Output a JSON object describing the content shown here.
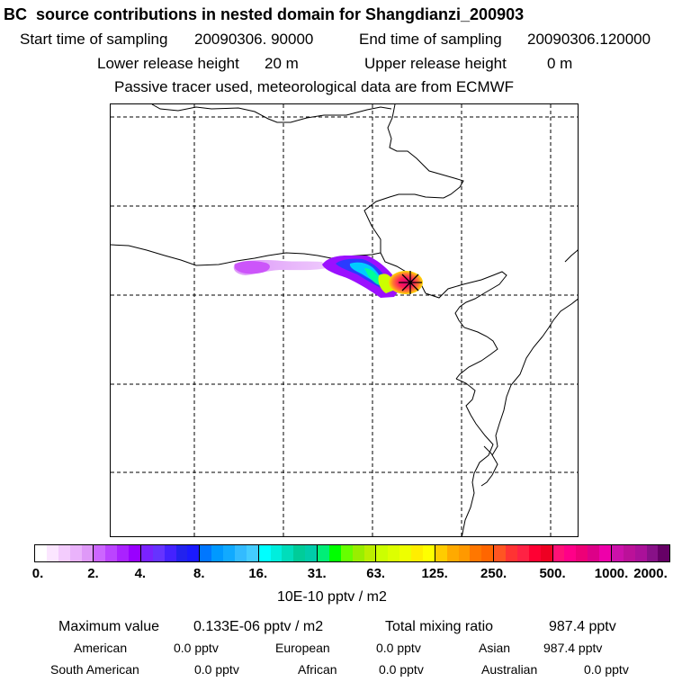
{
  "header": {
    "title": "BC  source contributions in nested domain for Shangdianzi_200903",
    "start_label": "Start time of sampling",
    "start_value": "20090306. 90000",
    "end_label": "End time of sampling",
    "end_value": "20090306.120000",
    "lower_label": "Lower release height",
    "lower_value": "20 m",
    "upper_label": "Upper release height",
    "upper_value": "0 m",
    "note": "Passive tracer used, meteorological data are from ECMWF"
  },
  "map": {
    "receptor_marker": "star-receptor-icon",
    "plume_peak_value_fraction": 1.0
  },
  "colorbar": {
    "ticks": [
      "0.",
      "2.",
      "4.",
      "8.",
      "16.",
      "31.",
      "63.",
      "125.",
      "250.",
      "500.",
      "1000.",
      "2000."
    ],
    "colors": [
      [
        "#ffffff",
        "#fbe6ff",
        "#f3ccfd",
        "#eab3fb",
        "#df99f8"
      ],
      [
        "#cc66ff",
        "#bb44ff",
        "#aa22ff",
        "#9900ff"
      ],
      [
        "#7a22ff",
        "#6633ff",
        "#4422ff",
        "#2222ee",
        "#1a1aff"
      ],
      [
        "#0077ff",
        "#0099ff",
        "#11aaff",
        "#33bbff",
        "#44ccff"
      ],
      [
        "#00ffff",
        "#00eedd",
        "#00ddbb",
        "#00cc99",
        "#00ccaa"
      ],
      [
        "#00ee77",
        "#00ff00",
        "#66ff00",
        "#99ee00",
        "#bbee00"
      ],
      [
        "#ccff00",
        "#ddff00",
        "#eeff00",
        "#ffee00",
        "#ffff00"
      ],
      [
        "#ffcc00",
        "#ffaa00",
        "#ff9900",
        "#ff7700",
        "#ff6600"
      ],
      [
        "#ff5522",
        "#ff3333",
        "#ff2244",
        "#ff0033",
        "#ee0022"
      ],
      [
        "#ff1177",
        "#ff0088",
        "#ee0077",
        "#dd0088",
        "#ee00aa"
      ],
      [
        "#cc11aa",
        "#bb1199",
        "#aa1199",
        "#881188",
        "#660066"
      ]
    ],
    "units": "10E-10 pptv / m2"
  },
  "stats": {
    "max_label": "Maximum value",
    "max_value": "0.133E-06 pptv / m2",
    "total_label": "Total mixing ratio",
    "total_value": "987.4 pptv",
    "american_label": "American",
    "american_value": "0.0 pptv",
    "european_label": "European",
    "european_value": "0.0 pptv",
    "asian_label": "Asian",
    "asian_value": "987.4 pptv",
    "south_american_label": "South American",
    "south_american_value": "0.0 pptv",
    "african_label": "African",
    "african_value": "0.0 pptv",
    "australian_label": "Australian",
    "australian_value": "0.0 pptv"
  }
}
